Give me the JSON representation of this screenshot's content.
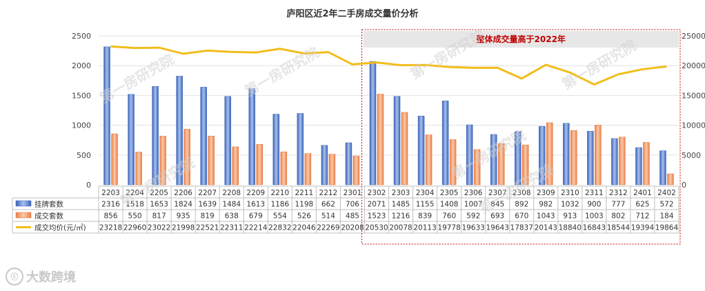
{
  "chart_data": {
    "type": "bar",
    "title": "庐阳区近2年二手房成交量价分析",
    "categories": [
      "2203",
      "2204",
      "2205",
      "2206",
      "2207",
      "2208",
      "2209",
      "2210",
      "2211",
      "2212",
      "2301",
      "2302",
      "2303",
      "2304",
      "2305",
      "2306",
      "2307",
      "2308",
      "2309",
      "2310",
      "2311",
      "2312",
      "2401",
      "2402"
    ],
    "series": [
      {
        "name": "挂牌套数",
        "kind": "bar",
        "axis": "left",
        "color": "#4a72c4",
        "values": [
          2316,
          1518,
          1653,
          1824,
          1639,
          1484,
          1613,
          1186,
          1198,
          662,
          706,
          2071,
          1485,
          1155,
          1408,
          1007,
          845,
          892,
          982,
          1032,
          900,
          777,
          625,
          572
        ]
      },
      {
        "name": "成交套数",
        "kind": "bar",
        "axis": "left",
        "color": "#f0915a",
        "values": [
          856,
          550,
          817,
          935,
          819,
          638,
          679,
          554,
          526,
          514,
          485,
          1523,
          1216,
          839,
          760,
          592,
          693,
          670,
          1043,
          913,
          1003,
          802,
          712,
          184
        ]
      },
      {
        "name": "成交均价(元/㎡)",
        "kind": "line",
        "axis": "right",
        "color": "#f2bd1b",
        "values": [
          23218,
          22960,
          23022,
          21998,
          22521,
          22311,
          22214,
          22832,
          22046,
          22269,
          20208,
          20530,
          20078,
          20113,
          19778,
          19633,
          19643,
          17837,
          20143,
          18840,
          16843,
          18544,
          19394,
          19864
        ]
      }
    ],
    "y_left": {
      "min": 0,
      "max": 2500,
      "ticks": [
        0,
        500,
        1000,
        1500,
        2000,
        2500
      ]
    },
    "y_right": {
      "min": 0,
      "max": 25000,
      "ticks": [
        0,
        5000,
        10000,
        15000,
        20000,
        25000
      ]
    },
    "annotation": {
      "text": "整体成交量高于2022年",
      "from_category": "2302",
      "to_category": "2402",
      "text_color": "#c00000",
      "border_color": "#c00000"
    },
    "data_table": true,
    "watermark": "第一房研究院"
  },
  "logo_text": "大数跨境",
  "logo_icon": "ⓒ"
}
